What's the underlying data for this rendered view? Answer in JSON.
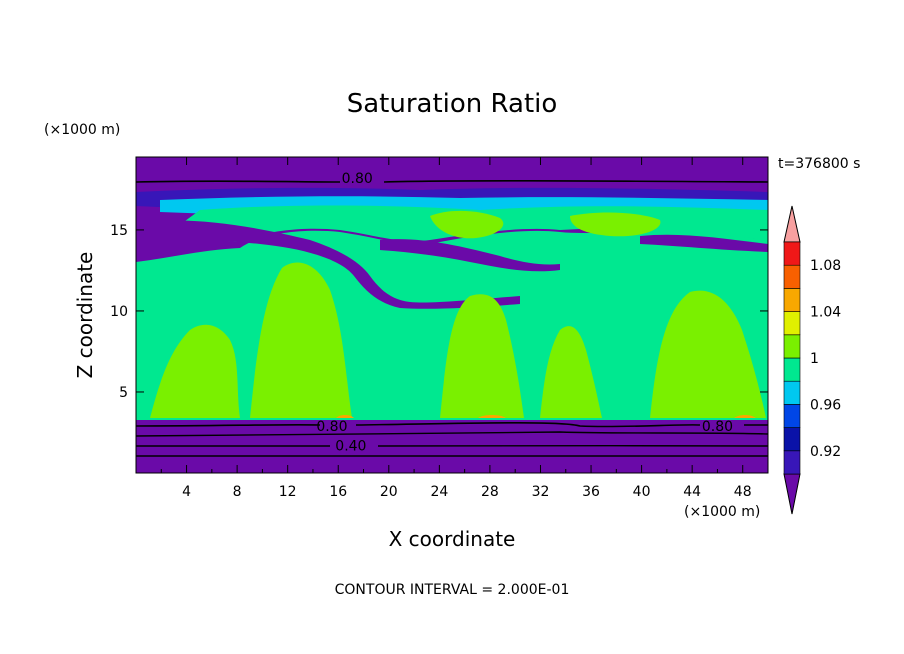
{
  "chart_data": {
    "type": "heatmap",
    "title": "Saturation Ratio",
    "xlabel": "X coordinate",
    "ylabel": "Z coordinate",
    "x_unit": "(×1000 m)",
    "y_unit": "(×1000 m)",
    "time_label": "t=376800 s",
    "footer": "CONTOUR INTERVAL = 2.000E-01",
    "xlim": [
      0,
      50
    ],
    "ylim": [
      0,
      19.5
    ],
    "x_ticks": [
      4,
      8,
      12,
      16,
      20,
      24,
      28,
      32,
      36,
      40,
      44,
      48
    ],
    "y_ticks": [
      5,
      10,
      15
    ],
    "colorbar": {
      "levels": [
        0.92,
        0.96,
        1,
        1.04,
        1.08
      ],
      "level_labels": [
        "0.92",
        "0.96",
        "1",
        "1.04",
        "1.08"
      ],
      "colors": [
        "#6a0aa8",
        "#3816b8",
        "#0a12a8",
        "#0046e6",
        "#00c8f0",
        "#00e890",
        "#7af000",
        "#e0f000",
        "#f8a800",
        "#f86000",
        "#f01818",
        "#f8a0a0"
      ]
    },
    "contour_labels": [
      {
        "text": "0.80",
        "x": 17.5,
        "z": 18.2
      },
      {
        "text": "0.80",
        "x": 15.5,
        "z": 2.9
      },
      {
        "text": "0.40",
        "x": 17.0,
        "z": 1.7
      },
      {
        "text": "0.80",
        "x": 46.0,
        "z": 2.9
      }
    ]
  }
}
